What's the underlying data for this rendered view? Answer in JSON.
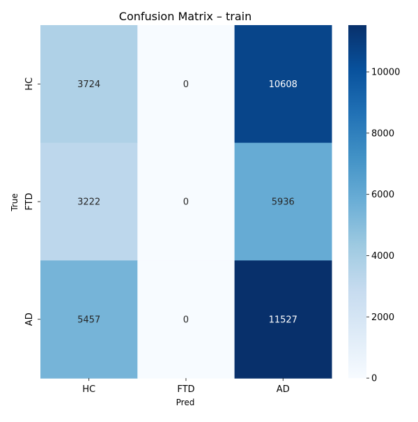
{
  "chart_data": {
    "type": "heatmap",
    "title": "Confusion Matrix – train",
    "xlabel": "Pred",
    "ylabel": "True",
    "x_categories": [
      "HC",
      "FTD",
      "AD"
    ],
    "y_categories": [
      "HC",
      "FTD",
      "AD"
    ],
    "values": [
      [
        3724,
        0,
        10608
      ],
      [
        3222,
        0,
        5936
      ],
      [
        5457,
        0,
        11527
      ]
    ],
    "colormap": "Blues",
    "colorbar": {
      "range": [
        0,
        11527
      ],
      "ticks": [
        0,
        2000,
        4000,
        6000,
        8000,
        10000
      ]
    },
    "grid": false
  }
}
